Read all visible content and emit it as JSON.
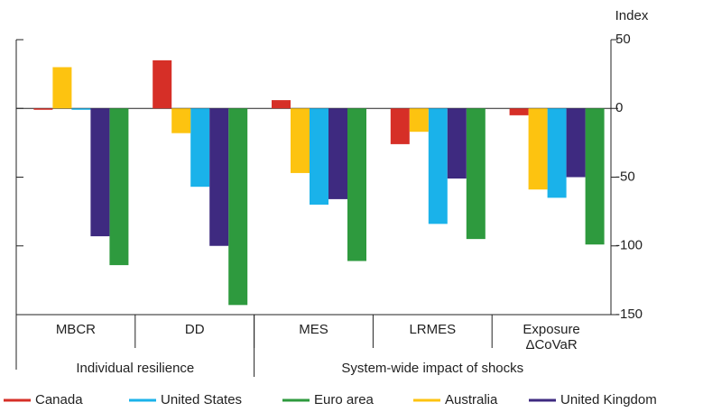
{
  "chart_data": {
    "type": "bar",
    "y_label": "Index",
    "categories": [
      "MBCR",
      "DD",
      "MES",
      "LRMES",
      "Exposure\nΔCoVaR"
    ],
    "groups": [
      "Individual resilience",
      "System-wide impact of shocks"
    ],
    "series": [
      {
        "name": "Canada",
        "color": "#d62f27",
        "values": [
          -1,
          35,
          6,
          -26,
          -5
        ]
      },
      {
        "name": "United States",
        "color": "#1ab2ea",
        "values": [
          -1,
          -57,
          -70,
          -84,
          -65
        ]
      },
      {
        "name": "Euro area",
        "color": "#2e9a3e",
        "values": [
          -114,
          -143,
          -111,
          -95,
          -99
        ]
      },
      {
        "name": "Australia",
        "color": "#fdc310",
        "values": [
          30,
          -18,
          -47,
          -17,
          -59
        ]
      },
      {
        "name": "United Kingdom",
        "color": "#3e2a80",
        "values": [
          -93,
          -100,
          -66,
          -51,
          -50
        ]
      }
    ],
    "ylim": [
      -150,
      50
    ],
    "yticks": [
      -150,
      -100,
      -50,
      0,
      50
    ]
  }
}
